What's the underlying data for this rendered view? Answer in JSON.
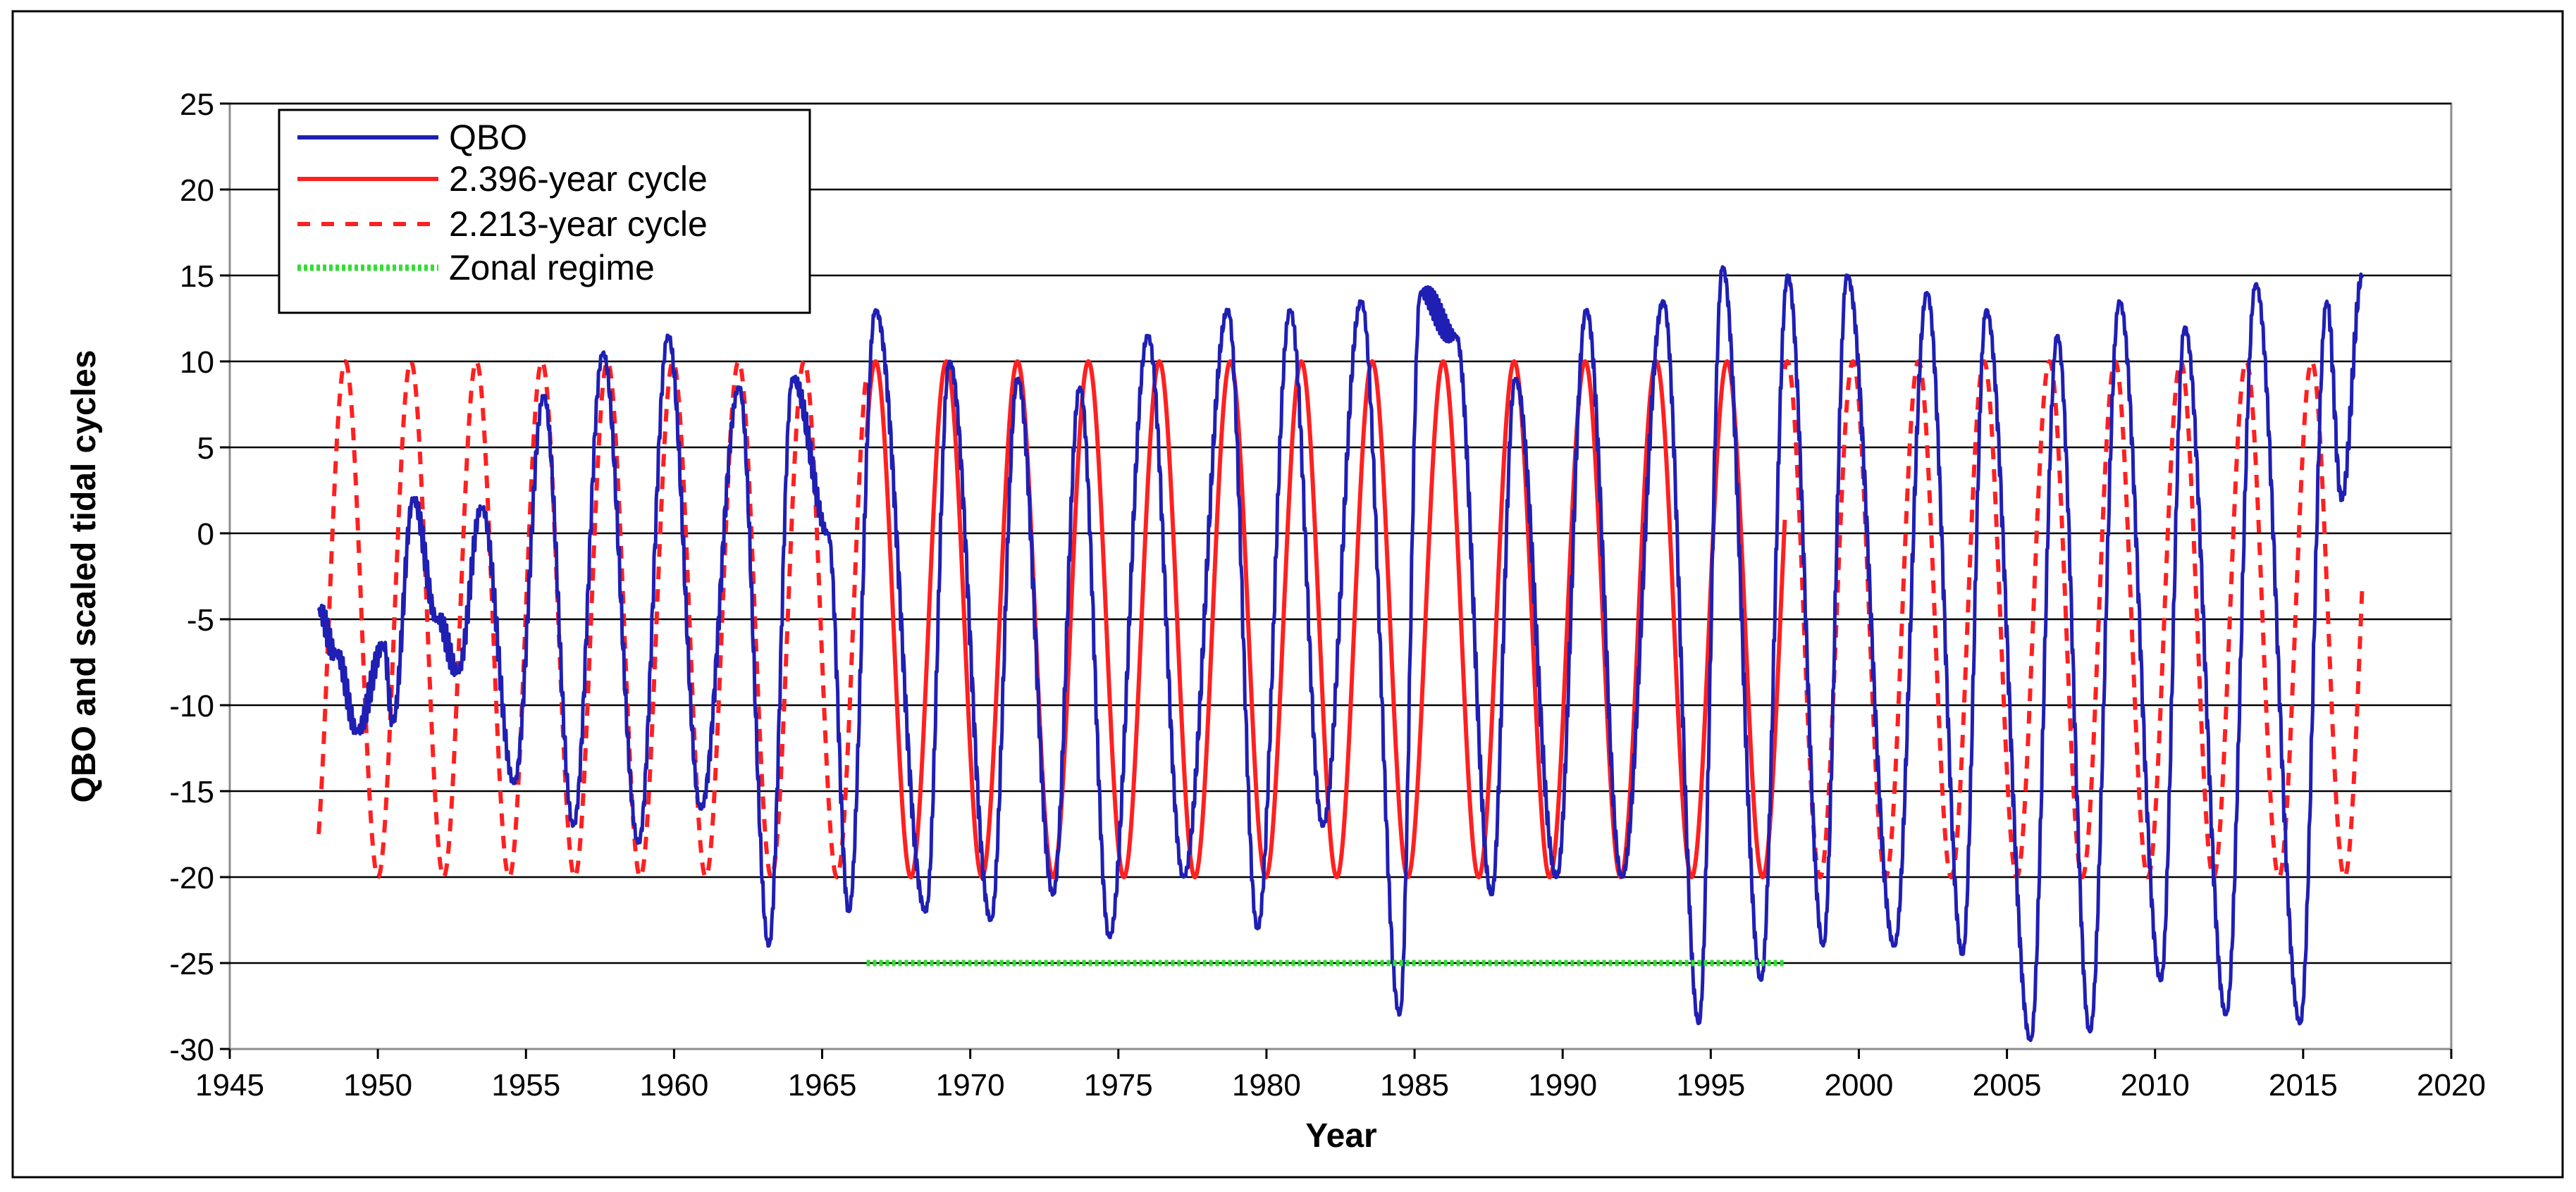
{
  "chart_data": {
    "type": "line",
    "title": "",
    "xlabel": "Year",
    "ylabel": "QBO and scaled tidal cycles",
    "xlim": [
      1945,
      2020
    ],
    "ylim": [
      -30,
      25
    ],
    "xticks": [
      "1945",
      "1950",
      "1955",
      "1960",
      "1965",
      "1970",
      "1975",
      "1980",
      "1985",
      "1990",
      "1995",
      "2000",
      "2005",
      "2010",
      "2015",
      "2020"
    ],
    "yticks": [
      "25",
      "20",
      "15",
      "10",
      "5",
      "0",
      "-5",
      "-10",
      "-15",
      "-20",
      "-25",
      "-30"
    ],
    "grid": "horizontal",
    "legend_position": "top-left",
    "colors": {
      "qbo": "#1f1fb4",
      "cycle_2396": "#ff2020",
      "cycle_2213": "#ff2020",
      "zonal": "#33dd33",
      "grid": "#000000",
      "frame": "#8c8c8c"
    },
    "series": [
      {
        "name": "QBO",
        "style": "solid",
        "x_start": 1948.0,
        "x_end": 2017.0,
        "approx_period_years": 2.33,
        "peaks": [
          {
            "x": 1948.0,
            "y": -4.5
          },
          {
            "x": 1948.6,
            "y": -7
          },
          {
            "x": 1949.3,
            "y": -11.5
          },
          {
            "x": 1950.2,
            "y": -6.5
          },
          {
            "x": 1950.5,
            "y": -11
          },
          {
            "x": 1951.2,
            "y": 2
          },
          {
            "x": 1952.0,
            "y": -5
          },
          {
            "x": 1952.7,
            "y": -8
          },
          {
            "x": 1953.5,
            "y": 1.5
          },
          {
            "x": 1954.6,
            "y": -14.5
          },
          {
            "x": 1955.6,
            "y": 8
          },
          {
            "x": 1956.6,
            "y": -17
          },
          {
            "x": 1957.6,
            "y": 10.5
          },
          {
            "x": 1958.8,
            "y": -18
          },
          {
            "x": 1959.8,
            "y": 11.5
          },
          {
            "x": 1960.9,
            "y": -16
          },
          {
            "x": 1962.2,
            "y": 8.5
          },
          {
            "x": 1963.2,
            "y": -24
          },
          {
            "x": 1964.0,
            "y": 9
          },
          {
            "x": 1965.2,
            "y": 0
          },
          {
            "x": 1965.9,
            "y": -22
          },
          {
            "x": 1966.8,
            "y": 13
          },
          {
            "x": 1968.5,
            "y": -22
          },
          {
            "x": 1969.3,
            "y": 10
          },
          {
            "x": 1970.7,
            "y": -22.5
          },
          {
            "x": 1971.6,
            "y": 9
          },
          {
            "x": 1972.8,
            "y": -21
          },
          {
            "x": 1973.7,
            "y": 8.5
          },
          {
            "x": 1974.7,
            "y": -23.5
          },
          {
            "x": 1976.0,
            "y": 11.5
          },
          {
            "x": 1977.2,
            "y": -20
          },
          {
            "x": 1978.7,
            "y": 13
          },
          {
            "x": 1979.7,
            "y": -23
          },
          {
            "x": 1980.8,
            "y": 13
          },
          {
            "x": 1981.9,
            "y": -17
          },
          {
            "x": 1983.2,
            "y": 13.5
          },
          {
            "x": 1984.5,
            "y": -28
          },
          {
            "x": 1985.2,
            "y": 14
          },
          {
            "x": 1986.4,
            "y": 11.5
          },
          {
            "x": 1987.6,
            "y": -21
          },
          {
            "x": 1988.4,
            "y": 9
          },
          {
            "x": 1989.8,
            "y": -20
          },
          {
            "x": 1990.8,
            "y": 13
          },
          {
            "x": 1992.0,
            "y": -20
          },
          {
            "x": 1993.4,
            "y": 13.5
          },
          {
            "x": 1994.6,
            "y": -28.5
          },
          {
            "x": 1995.4,
            "y": 15.5
          },
          {
            "x": 1996.7,
            "y": -26
          },
          {
            "x": 1997.6,
            "y": 15
          },
          {
            "x": 1998.8,
            "y": -24
          },
          {
            "x": 1999.6,
            "y": 15
          },
          {
            "x": 2001.2,
            "y": -24
          },
          {
            "x": 2002.3,
            "y": 14
          },
          {
            "x": 2003.5,
            "y": -24.5
          },
          {
            "x": 2004.3,
            "y": 13
          },
          {
            "x": 2005.8,
            "y": -29.5
          },
          {
            "x": 2006.7,
            "y": 11.5
          },
          {
            "x": 2007.8,
            "y": -29
          },
          {
            "x": 2008.8,
            "y": 13.5
          },
          {
            "x": 2010.2,
            "y": -26
          },
          {
            "x": 2011.0,
            "y": 12
          },
          {
            "x": 2012.4,
            "y": -28
          },
          {
            "x": 2013.4,
            "y": 14.5
          },
          {
            "x": 2014.9,
            "y": -28.5
          },
          {
            "x": 2015.8,
            "y": 13.5
          },
          {
            "x": 2016.3,
            "y": 2
          },
          {
            "x": 2017.0,
            "y": 15
          }
        ]
      },
      {
        "name": "2.396-year cycle",
        "style": "solid",
        "period_years": 2.396,
        "amplitude": 15,
        "offset": -5,
        "x_start": 1966.5,
        "x_end": 1997.5,
        "peak_at": 1966.8
      },
      {
        "name": "2.213-year cycle",
        "style": "dashed",
        "period_years": 2.213,
        "amplitude": 15,
        "offset": -5,
        "x_start": 1948.0,
        "x_end": 2017.0,
        "peak_at": 1948.9,
        "segments": [
          [
            1948.0,
            1966.5
          ],
          [
            1997.5,
            2017.0
          ]
        ]
      },
      {
        "name": "Zonal regime",
        "style": "dotted",
        "x": [
          1966.5,
          1997.5
        ],
        "y": [
          -25,
          -25
        ]
      }
    ]
  }
}
